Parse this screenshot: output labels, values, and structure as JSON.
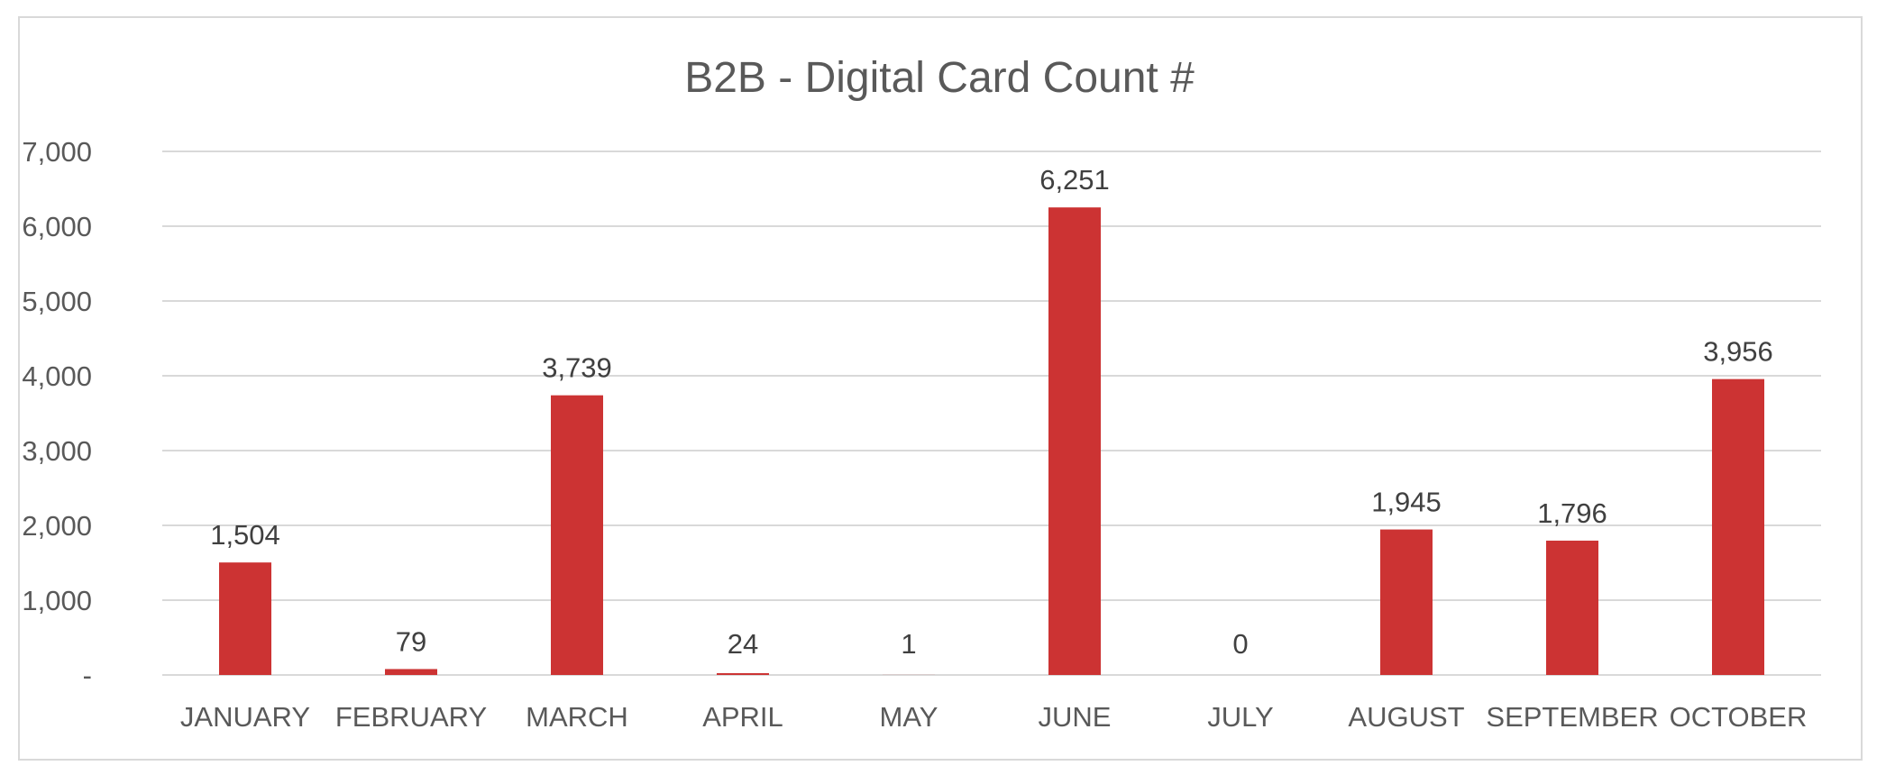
{
  "chart_data": {
    "type": "bar",
    "title": "B2B - Digital Card Count #",
    "xlabel": "",
    "ylabel": "",
    "categories": [
      "JANUARY",
      "FEBRUARY",
      "MARCH",
      "APRIL",
      "MAY",
      "JUNE",
      "JULY",
      "AUGUST",
      "SEPTEMBER",
      "OCTOBER"
    ],
    "values": [
      1504,
      79,
      3739,
      24,
      1,
      6251,
      0,
      1945,
      1796,
      3956
    ],
    "data_labels": [
      "1,504",
      "79",
      "3,739",
      "24",
      "1",
      "6,251",
      "0",
      "1,945",
      "1,796",
      "3,956"
    ],
    "ylim": [
      0,
      7000
    ],
    "y_ticks": [
      0,
      1000,
      2000,
      3000,
      4000,
      5000,
      6000,
      7000
    ],
    "y_tick_labels": [
      "-",
      "1,000",
      "2,000",
      "3,000",
      "4,000",
      "5,000",
      "6,000",
      "7,000"
    ],
    "grid": true,
    "legend": "none",
    "bar_color": "#cc3333"
  }
}
